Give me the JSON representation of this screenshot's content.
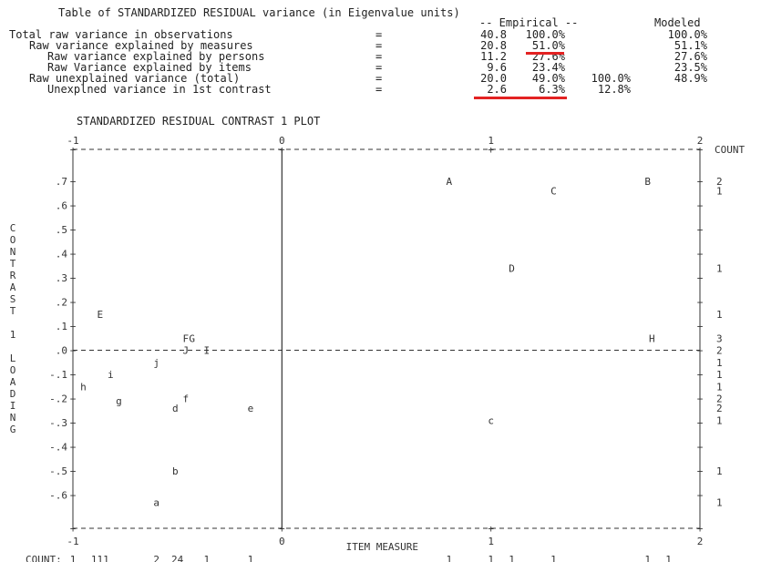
{
  "table": {
    "title": "Table of STANDARDIZED RESIDUAL variance (in Eigenvalue units)",
    "empirical_header": "-- Empirical --",
    "modeled_header": "Modeled",
    "rows": [
      {
        "label": "Total raw variance in observations",
        "eq": "=",
        "eig": "40.8",
        "pct": "100.0%",
        "extra": "",
        "modeled": "100.0%"
      },
      {
        "label": "Raw variance explained by measures",
        "eq": "=",
        "eig": "20.8",
        "pct": "51.0%",
        "extra": "",
        "modeled": "51.1%"
      },
      {
        "label": "Raw variance explained by persons",
        "eq": "=",
        "eig": "11.2",
        "pct": "27.6%",
        "extra": "",
        "modeled": "27.6%"
      },
      {
        "label": "Raw Variance explained by items",
        "eq": "=",
        "eig": "9.6",
        "pct": "23.4%",
        "extra": "",
        "modeled": "23.5%"
      },
      {
        "label": "Raw unexplained variance (total)",
        "eq": "=",
        "eig": "20.0",
        "pct": "49.0%",
        "extra": "100.0%",
        "modeled": "48.9%"
      },
      {
        "label": "Unexplned variance in 1st contrast",
        "eq": "=",
        "eig": "2.6",
        "pct": "6.3%",
        "extra": "12.8%",
        "modeled": ""
      }
    ],
    "highlight_color": "#e32222"
  },
  "chart_data": {
    "type": "scatter",
    "title": "STANDARDIZED RESIDUAL CONTRAST 1 PLOT",
    "xlabel": "ITEM MEASURE",
    "ylabel_letters": [
      "C",
      "O",
      "N",
      "T",
      "R",
      "A",
      "S",
      "T",
      "",
      "1",
      "",
      "L",
      "O",
      "A",
      "D",
      "I",
      "N",
      "G"
    ],
    "xlim": [
      -1,
      2
    ],
    "ylim": [
      -0.65,
      0.75
    ],
    "x_ticks": [
      "-1",
      "0",
      "1",
      "2"
    ],
    "y_ticks": [
      ".7",
      ".6",
      ".5",
      ".4",
      ".3",
      ".2",
      ".1",
      ".0",
      "-.1",
      "-.2",
      "-.3",
      "-.4",
      "-.5",
      "-.6"
    ],
    "right_label": "COUNT",
    "points": [
      {
        "label": "A",
        "x": 0.8,
        "y": 0.7
      },
      {
        "label": "B",
        "x": 1.75,
        "y": 0.7
      },
      {
        "label": "C",
        "x": 1.3,
        "y": 0.66
      },
      {
        "label": "D",
        "x": 1.1,
        "y": 0.34
      },
      {
        "label": "E",
        "x": -0.87,
        "y": 0.15
      },
      {
        "label": "F",
        "x": -0.46,
        "y": 0.05
      },
      {
        "label": "G",
        "x": -0.43,
        "y": 0.05
      },
      {
        "label": "H",
        "x": 1.77,
        "y": 0.05
      },
      {
        "label": "J",
        "x": -0.46,
        "y": 0.0
      },
      {
        "label": "I",
        "x": -0.36,
        "y": 0.0
      },
      {
        "label": "j",
        "x": -0.6,
        "y": -0.05
      },
      {
        "label": "i",
        "x": -0.82,
        "y": -0.1
      },
      {
        "label": "h",
        "x": -0.95,
        "y": -0.15
      },
      {
        "label": "g",
        "x": -0.78,
        "y": -0.21
      },
      {
        "label": "f",
        "x": -0.46,
        "y": -0.2
      },
      {
        "label": "d",
        "x": -0.51,
        "y": -0.24
      },
      {
        "label": "e",
        "x": -0.15,
        "y": -0.24
      },
      {
        "label": "c",
        "x": 1.0,
        "y": -0.29
      },
      {
        "label": "b",
        "x": -0.51,
        "y": -0.5
      },
      {
        "label": "a",
        "x": -0.6,
        "y": -0.63
      }
    ],
    "right_counts": [
      {
        "y": 0.7,
        "text": "2"
      },
      {
        "y": 0.66,
        "text": "1"
      },
      {
        "y": 0.34,
        "text": "1"
      },
      {
        "y": 0.15,
        "text": "1"
      },
      {
        "y": 0.05,
        "text": "3"
      },
      {
        "y": 0.0,
        "text": "2"
      },
      {
        "y": -0.05,
        "text": "1"
      },
      {
        "y": -0.1,
        "text": "1"
      },
      {
        "y": -0.15,
        "text": "1"
      },
      {
        "y": -0.2,
        "text": "2"
      },
      {
        "y": -0.24,
        "text": "2"
      },
      {
        "y": -0.29,
        "text": "1"
      },
      {
        "y": -0.5,
        "text": "1"
      },
      {
        "y": -0.63,
        "text": "1"
      }
    ],
    "bottom_count_label": "COUNT:",
    "bottom_counts": [
      {
        "x": -1.0,
        "text": "1"
      },
      {
        "x": -0.87,
        "text": "111"
      },
      {
        "x": -0.6,
        "text": "2"
      },
      {
        "x": -0.5,
        "text": "24"
      },
      {
        "x": -0.36,
        "text": "1"
      },
      {
        "x": -0.15,
        "text": "1"
      },
      {
        "x": 0.8,
        "text": "1"
      },
      {
        "x": 1.0,
        "text": "1"
      },
      {
        "x": 1.1,
        "text": "1"
      },
      {
        "x": 1.3,
        "text": "1"
      },
      {
        "x": 1.75,
        "text": "1"
      },
      {
        "x": 1.85,
        "text": "1"
      }
    ]
  }
}
